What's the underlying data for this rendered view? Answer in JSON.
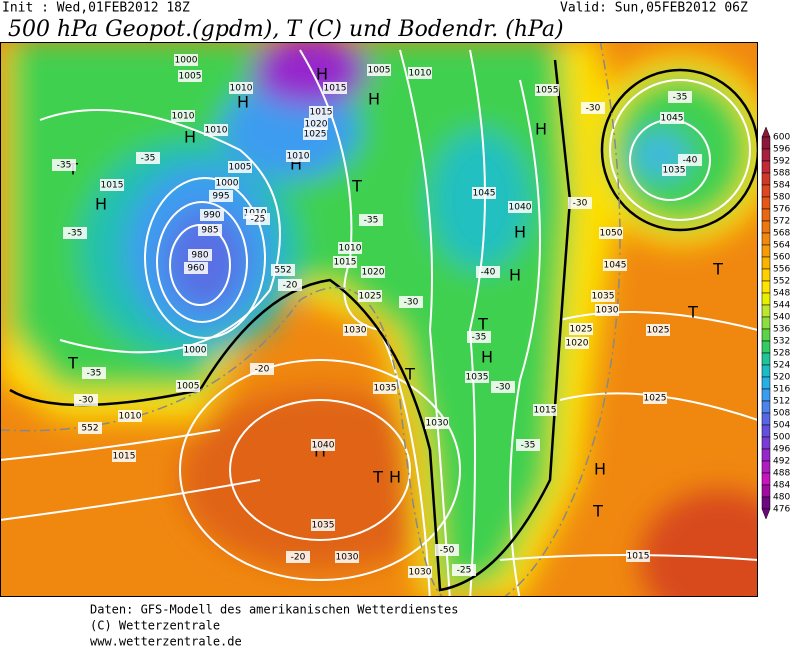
{
  "header": {
    "init": "Init : Wed,01FEB2012 18Z",
    "valid": "Valid: Sun,05FEB2012 06Z",
    "title": "500 hPa Geopot.(gpdm), T (C) und Bodendr. (hPa)"
  },
  "colorbar": {
    "labels": [
      "600",
      "596",
      "592",
      "588",
      "584",
      "580",
      "576",
      "572",
      "568",
      "564",
      "560",
      "556",
      "552",
      "548",
      "544",
      "540",
      "536",
      "532",
      "528",
      "524",
      "520",
      "516",
      "512",
      "508",
      "504",
      "500",
      "496",
      "492",
      "488",
      "484",
      "480",
      "476"
    ],
    "colors": [
      "#8b1a3a",
      "#a8203e",
      "#c02a3a",
      "#d03828",
      "#dc4820",
      "#e45818",
      "#ea6814",
      "#ee7810",
      "#f28810",
      "#f69c08",
      "#fab400",
      "#fdd000",
      "#ffe400",
      "#e6f000",
      "#bce630",
      "#8ede40",
      "#5cd448",
      "#34cc64",
      "#20c496",
      "#1cbcc4",
      "#28b0e4",
      "#3c9cf0",
      "#4c84ec",
      "#5868e4",
      "#6450dc",
      "#7a3cd4",
      "#9628cc",
      "#b01cc4",
      "#c814bc",
      "#a00ca0",
      "#6e0880"
    ]
  },
  "map_labels": [
    "H",
    "H",
    "H",
    "H",
    "H",
    "H",
    "H",
    "H",
    "H",
    "H",
    "H",
    "H",
    "H",
    "T",
    "T",
    "T",
    "T",
    "T",
    "T",
    "T",
    "T",
    "T",
    "1000",
    "1005",
    "1010",
    "1015",
    "1005",
    "1010",
    "1010",
    "1010",
    "1015",
    "1020",
    "1025",
    "1010",
    "1015",
    "1005",
    "1000",
    "995",
    "990",
    "985",
    "980",
    "960",
    "1010",
    "1010",
    "1015",
    "1020",
    "1025",
    "1030",
    "1000",
    "1005",
    "1010",
    "1015",
    "1035",
    "1040",
    "1035",
    "1030",
    "1030",
    "1045",
    "1040",
    "1055",
    "1045",
    "1035",
    "1050",
    "1045",
    "1035",
    "1030",
    "1025",
    "1025",
    "1020",
    "1035",
    "1030",
    "1015",
    "1025",
    "1015",
    "-35",
    "-35",
    "-35",
    "-35",
    "-35",
    "-35",
    "-35",
    "-35",
    "-30",
    "-30",
    "-30",
    "-30",
    "-30",
    "-25",
    "-25",
    "-20",
    "-20",
    "-20",
    "-40",
    "-40",
    "-50",
    "552",
    "552"
  ],
  "footer": [
    "Daten: GFS-Modell des amerikanischen Wetterdienstes",
    "(C) Wetterzentrale",
    "www.wetterzentrale.de"
  ]
}
